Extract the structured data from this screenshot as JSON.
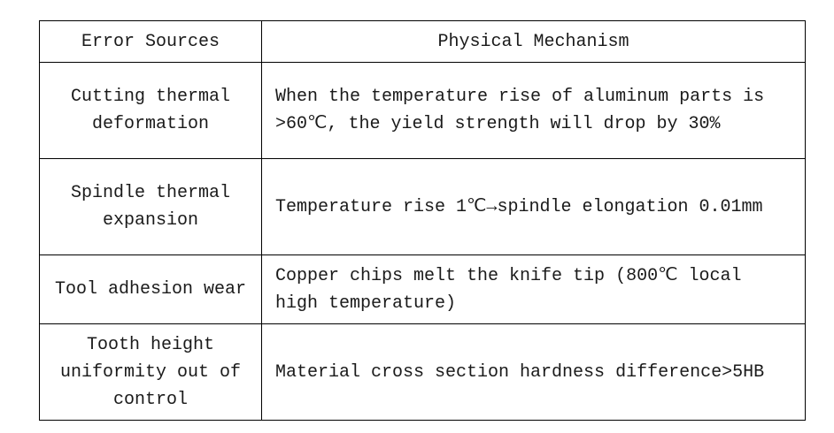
{
  "headers": {
    "source": "Error Sources",
    "mechanism": "Physical Mechanism"
  },
  "rows": [
    {
      "source": "Cutting thermal deformation",
      "mechanism": "When the temperature rise of aluminum parts is >60℃, the yield strength will drop by 30%"
    },
    {
      "source": "Spindle thermal expansion",
      "mechanism": "Temperature rise 1℃→spindle elongation 0.01mm"
    },
    {
      "source": "Tool adhesion wear",
      "mechanism": "Copper chips melt the knife tip (800℃ local high temperature)"
    },
    {
      "source": "Tooth height uniformity out of control",
      "mechanism": "Material cross section hardness difference>5HB"
    }
  ]
}
